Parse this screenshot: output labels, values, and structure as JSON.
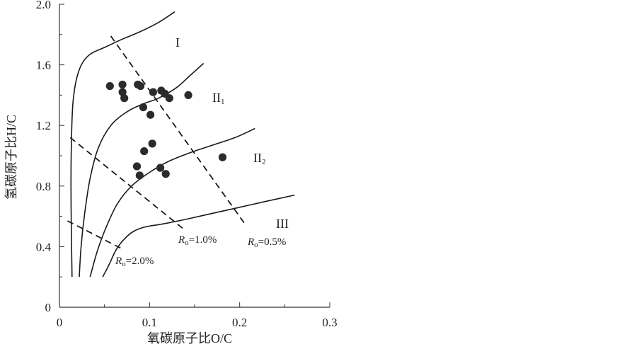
{
  "chart_data": {
    "type": "scatter",
    "xlabel": "氧碳原子比O/C",
    "ylabel": "氢碳原子比H/C",
    "xlim": [
      0,
      0.3
    ],
    "ylim": [
      0,
      2.0
    ],
    "x_ticks": [
      "0",
      "0.1",
      "0.2",
      "0.3"
    ],
    "y_ticks": [
      "0",
      "0.4",
      "0.8",
      "1.2",
      "1.6",
      "2.0"
    ],
    "grid": false,
    "points": [
      {
        "x": 0.056,
        "y": 1.46
      },
      {
        "x": 0.07,
        "y": 1.47
      },
      {
        "x": 0.07,
        "y": 1.42
      },
      {
        "x": 0.072,
        "y": 1.38
      },
      {
        "x": 0.087,
        "y": 1.47
      },
      {
        "x": 0.09,
        "y": 1.46
      },
      {
        "x": 0.104,
        "y": 1.42
      },
      {
        "x": 0.113,
        "y": 1.43
      },
      {
        "x": 0.117,
        "y": 1.41
      },
      {
        "x": 0.122,
        "y": 1.38
      },
      {
        "x": 0.143,
        "y": 1.4
      },
      {
        "x": 0.093,
        "y": 1.32
      },
      {
        "x": 0.101,
        "y": 1.27
      },
      {
        "x": 0.103,
        "y": 1.08
      },
      {
        "x": 0.094,
        "y": 1.03
      },
      {
        "x": 0.086,
        "y": 0.93
      },
      {
        "x": 0.112,
        "y": 0.92
      },
      {
        "x": 0.089,
        "y": 0.87
      },
      {
        "x": 0.118,
        "y": 0.88
      },
      {
        "x": 0.181,
        "y": 0.99
      }
    ],
    "boundary_curves": [
      {
        "x": [
          0.014,
          0.013,
          0.013,
          0.015,
          0.021,
          0.032,
          0.052,
          0.07,
          0.09,
          0.11,
          0.128
        ],
        "y": [
          0.2,
          0.6,
          1.0,
          1.35,
          1.55,
          1.66,
          1.72,
          1.77,
          1.82,
          1.88,
          1.95
        ]
      },
      {
        "x": [
          0.022,
          0.024,
          0.028,
          0.034,
          0.043,
          0.057,
          0.075,
          0.092,
          0.11,
          0.13,
          0.145,
          0.16
        ],
        "y": [
          0.2,
          0.4,
          0.62,
          0.85,
          1.05,
          1.2,
          1.29,
          1.34,
          1.38,
          1.45,
          1.53,
          1.61
        ]
      },
      {
        "x": [
          0.034,
          0.042,
          0.052,
          0.064,
          0.08,
          0.1,
          0.12,
          0.145,
          0.17,
          0.195,
          0.217
        ],
        "y": [
          0.2,
          0.37,
          0.53,
          0.68,
          0.8,
          0.89,
          0.96,
          1.02,
          1.07,
          1.12,
          1.18
        ]
      },
      {
        "x": [
          0.048,
          0.055,
          0.063,
          0.072,
          0.082,
          0.095,
          0.115,
          0.14,
          0.17,
          0.2,
          0.23,
          0.261
        ],
        "y": [
          0.2,
          0.28,
          0.38,
          0.45,
          0.5,
          0.53,
          0.55,
          0.58,
          0.62,
          0.66,
          0.7,
          0.74
        ]
      }
    ],
    "ro_lines": [
      {
        "label": "Ro=0.5%",
        "x": [
          0.057,
          0.207
        ],
        "y": [
          1.79,
          0.54
        ]
      },
      {
        "label": "Ro=1.0%",
        "x": [
          0.012,
          0.137
        ],
        "y": [
          1.12,
          0.52
        ]
      },
      {
        "label": "Ro=2.0%",
        "x": [
          0.009,
          0.068
        ],
        "y": [
          0.57,
          0.39
        ]
      }
    ],
    "zone_labels": [
      {
        "main": "I",
        "sub": ""
      },
      {
        "main": "II",
        "sub": "1"
      },
      {
        "main": "II",
        "sub": "2"
      },
      {
        "main": "III",
        "sub": ""
      }
    ],
    "ro_labels": [
      {
        "italic": "R",
        "sub": "o",
        "rest": "=0.5%"
      },
      {
        "italic": "R",
        "sub": "o",
        "rest": "=1.0%"
      },
      {
        "italic": "R",
        "sub": "o",
        "rest": "=2.0%"
      }
    ],
    "colors": {
      "axis": "#333333",
      "point": "#2b2b2b",
      "curve": "#1a1a1a"
    }
  }
}
